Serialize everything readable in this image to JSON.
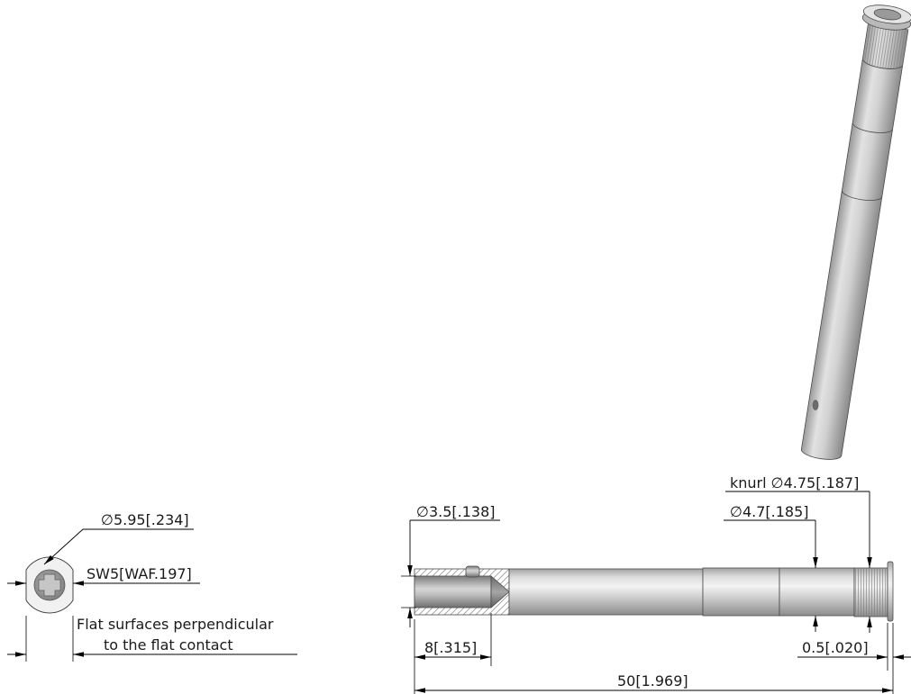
{
  "end_view": {
    "diameter_label": "∅5.95[.234]",
    "across_flats_label": "SW5[WAF.197]",
    "note_line_1": "Flat surfaces perpendicular",
    "note_line_2": "to the flat contact"
  },
  "side_view": {
    "bore_diameter_label": "∅3.5[.138]",
    "shaft_diameter_label": "∅4.7[.185]",
    "knurl_diameter_label": "knurl ∅4.75[.187]",
    "bore_depth_label": "8[.315]",
    "flange_thickness_label": "0.5[.020]",
    "overall_length_label": "50[1.969]"
  },
  "colors": {
    "line": "#000000",
    "outline": "#4a4a4a",
    "hatch": "#9a9a9a"
  }
}
